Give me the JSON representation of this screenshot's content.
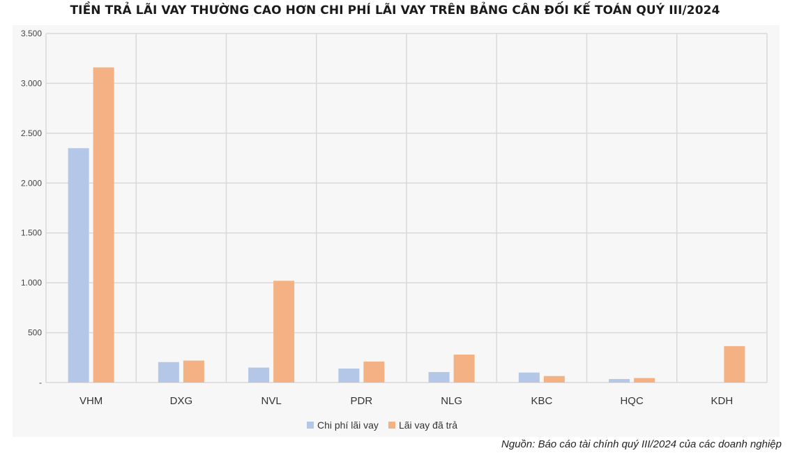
{
  "title": "TIỀN TRẢ LÃI VAY THƯỜNG CAO HƠN CHI PHÍ LÃI VAY TRÊN BẢNG CÂN ĐỐI KẾ TOÁN QUÝ III/2024",
  "source": "Nguồn: Báo cáo tài chính quý III/2024 của các doanh nghiệp",
  "colors": {
    "series_1": "#b4c7e7",
    "series_2": "#f4b183",
    "grid": "#d9d9d9",
    "background": "#f7f7f7"
  },
  "chart_data": {
    "type": "bar",
    "title": "TIỀN TRẢ LÃI VAY THƯỜNG CAO HƠN CHI PHÍ LÃI VAY TRÊN BẢNG CÂN ĐỐI KẾ TOÁN QUÝ III/2024",
    "categories": [
      "VHM",
      "DXG",
      "NVL",
      "PDR",
      "NLG",
      "KBC",
      "HQC",
      "KDH"
    ],
    "series": [
      {
        "name": "Chi phí lãi vay",
        "values": [
          2350,
          205,
          150,
          140,
          105,
          100,
          35,
          0
        ]
      },
      {
        "name": "Lãi vay đã trả",
        "values": [
          3160,
          220,
          1020,
          210,
          280,
          65,
          45,
          365
        ]
      }
    ],
    "ylim": [
      0,
      3500
    ],
    "yticks": [
      0,
      500,
      1000,
      1500,
      2000,
      2500,
      3000,
      3500
    ],
    "ytick_labels": [
      "-",
      "500",
      "1.000",
      "1.500",
      "2.000",
      "2.500",
      "3.000",
      "3.500"
    ],
    "xlabel": "",
    "ylabel": "",
    "grid": true,
    "legend_position": "bottom"
  }
}
